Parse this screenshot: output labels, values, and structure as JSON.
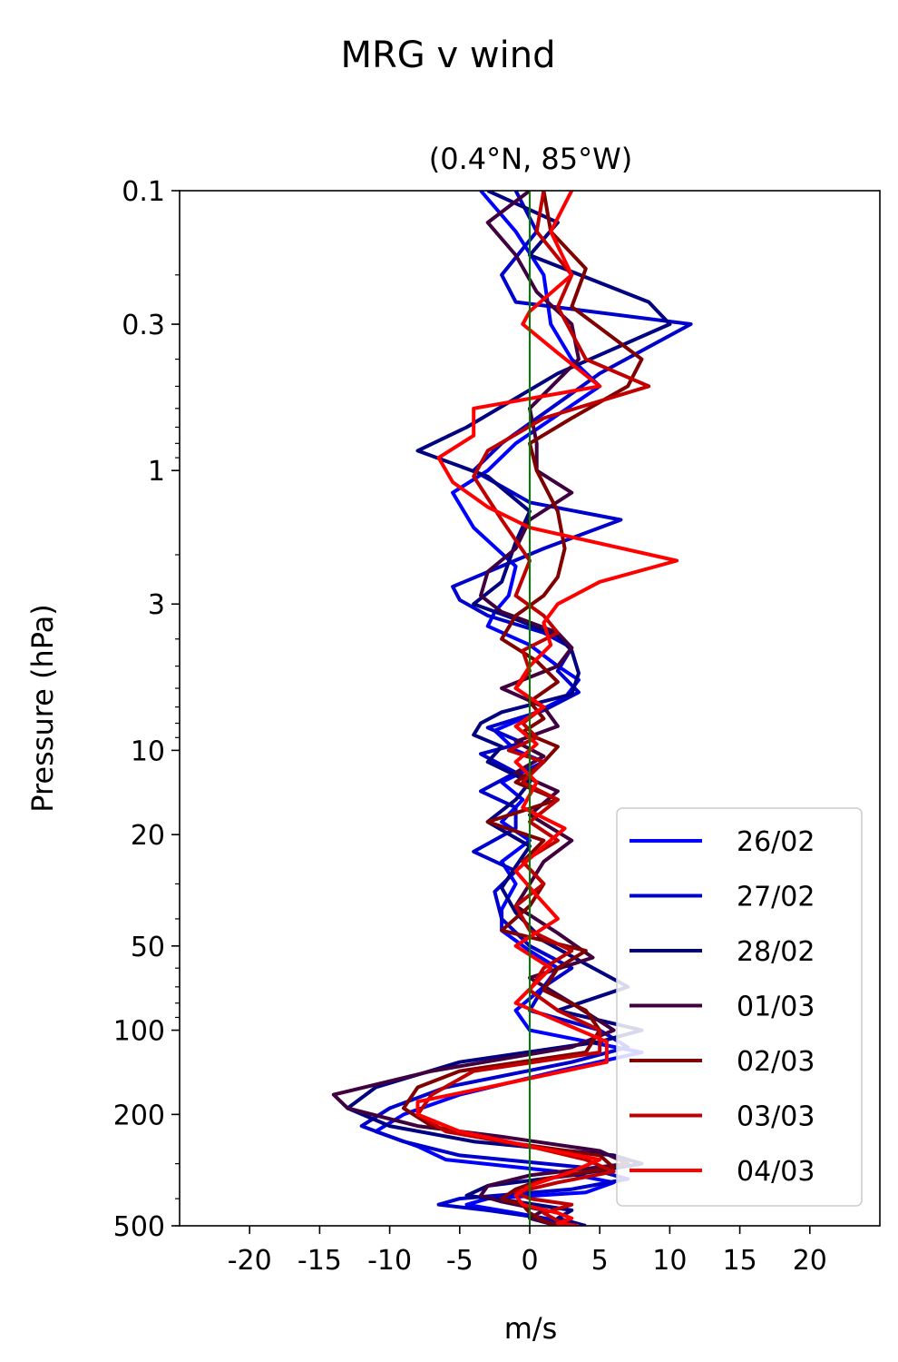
{
  "chart_data": {
    "type": "line",
    "title": "MRG v wind",
    "subtitle": "(0.4°N, 85°W)",
    "xlabel": "m/s",
    "ylabel": "Pressure (hPa)",
    "xlim": [
      -25,
      25
    ],
    "ylim": [
      500,
      0.1
    ],
    "yscale": "log",
    "xticks": [
      -20,
      -15,
      -10,
      -5,
      0,
      5,
      10,
      15,
      20
    ],
    "xtick_labels": [
      "-20",
      "-15",
      "-10",
      "-5",
      "0",
      "5",
      "10",
      "15",
      "20"
    ],
    "yticks": [
      0.1,
      0.3,
      1,
      3,
      10,
      20,
      50,
      100,
      200,
      500
    ],
    "ytick_labels": [
      "0.1",
      "0.3",
      "1",
      "3",
      "10",
      "20",
      "50",
      "100",
      "200",
      "500"
    ],
    "zero_line_color": "#008000",
    "legend_position": "lower-right",
    "series": [
      {
        "name": "26/02",
        "color": "#0000ff",
        "x": [
          -3.5,
          -1,
          1,
          1.5,
          3,
          5,
          -1,
          -3,
          -5.5,
          -4,
          -1,
          -1.5,
          -2.5,
          -3,
          0,
          2,
          3.5,
          2.5,
          0,
          -2.5,
          -1,
          1,
          -2,
          -0.5,
          -2,
          0,
          -2,
          -1,
          -2,
          -2,
          0,
          2,
          1,
          -1,
          0,
          8,
          2,
          -5,
          -9,
          -11,
          -8,
          -6,
          2,
          6,
          4,
          -3,
          -4.5,
          -1,
          2,
          4
        ],
        "y": [
          0.1,
          0.14,
          0.2,
          0.3,
          0.4,
          0.5,
          0.8,
          1.0,
          1.2,
          1.6,
          2.2,
          2.8,
          3.2,
          3.6,
          4.2,
          5.0,
          5.6,
          6.5,
          7.5,
          8.5,
          10,
          11,
          13,
          15,
          18,
          21,
          25,
          30,
          37,
          44,
          52,
          60,
          70,
          85,
          100,
          120,
          140,
          170,
          200,
          230,
          260,
          290,
          320,
          350,
          380,
          400,
          420,
          450,
          480,
          500
        ]
      },
      {
        "name": "27/02",
        "color": "#0000cc",
        "x": [
          -1,
          0.5,
          -2,
          -1,
          11.5,
          5,
          -2,
          -4,
          0,
          6.5,
          1,
          -5.5,
          -5,
          -3,
          1,
          3,
          2,
          3.5,
          1,
          -3,
          -0.5,
          -3.5,
          -1,
          -3.5,
          -1,
          -1,
          -4,
          -1,
          -2.5,
          -2,
          0,
          3,
          1,
          0,
          5,
          7,
          3,
          -6,
          -10,
          -12,
          -9,
          -5,
          4,
          7,
          3,
          -5,
          -6.5,
          -3,
          1,
          3
        ],
        "y": [
          0.1,
          0.14,
          0.2,
          0.25,
          0.3,
          0.45,
          0.8,
          1.0,
          1.3,
          1.5,
          1.9,
          2.6,
          2.9,
          3.3,
          3.8,
          4.3,
          5.2,
          6.2,
          7.2,
          8.3,
          9.4,
          10.3,
          12,
          14,
          16,
          19,
          23,
          27,
          32,
          40,
          50,
          60,
          70,
          85,
          100,
          115,
          130,
          160,
          190,
          220,
          250,
          280,
          310,
          340,
          370,
          400,
          420,
          440,
          470,
          500
        ]
      },
      {
        "name": "28/02",
        "color": "#000080",
        "x": [
          -3,
          2,
          0,
          8.5,
          10,
          2,
          -4.5,
          -8,
          -3,
          0,
          -1,
          -2,
          -4,
          -1,
          2,
          3,
          3.5,
          3,
          -2,
          -3.5,
          -4,
          -2,
          -3,
          0,
          -1,
          -3,
          0,
          -1,
          -2,
          -1,
          1,
          4,
          7,
          2,
          8,
          5,
          -5,
          -11,
          -13,
          -10,
          -4,
          6,
          8,
          3,
          -3,
          -4.5,
          -1,
          3,
          2,
          4
        ],
        "y": [
          0.1,
          0.13,
          0.17,
          0.25,
          0.3,
          0.45,
          0.7,
          0.85,
          1.05,
          1.4,
          1.8,
          2.5,
          3.0,
          3.4,
          3.9,
          4.4,
          5.3,
          6.3,
          7.3,
          8.0,
          8.8,
          9.7,
          11,
          13,
          15,
          18,
          22,
          26,
          31,
          38,
          48,
          58,
          70,
          85,
          100,
          110,
          130,
          160,
          190,
          220,
          250,
          280,
          300,
          330,
          360,
          390,
          410,
          440,
          470,
          500
        ]
      },
      {
        "name": "01/03",
        "color": "#400040",
        "x": [
          0,
          -3,
          -1,
          0.5,
          3,
          3.5,
          0,
          0.5,
          0.5,
          3,
          0,
          -1,
          -3,
          -3.5,
          -2,
          2,
          3,
          2,
          -2,
          1,
          2,
          -1,
          1,
          -1,
          2,
          0,
          3,
          1,
          0,
          -1,
          2,
          4.5,
          0,
          3,
          6,
          3,
          -7,
          -14,
          -13,
          -8,
          -2,
          5,
          7,
          0,
          -3,
          -3.5,
          -2,
          1,
          0,
          2
        ],
        "y": [
          0.1,
          0.13,
          0.17,
          0.23,
          0.3,
          0.4,
          0.6,
          0.8,
          1.0,
          1.2,
          1.5,
          1.9,
          2.3,
          2.8,
          3.2,
          3.8,
          4.3,
          5.0,
          6.0,
          7.0,
          8.2,
          9.3,
          10.5,
          12,
          14,
          17,
          21,
          25,
          30,
          36,
          45,
          55,
          65,
          80,
          100,
          115,
          140,
          170,
          190,
          220,
          240,
          270,
          300,
          330,
          360,
          390,
          410,
          440,
          470,
          500
        ]
      },
      {
        "name": "02/03",
        "color": "#800000",
        "x": [
          1,
          1.5,
          4,
          3,
          8,
          7,
          3,
          0,
          0.5,
          2,
          2.5,
          2,
          1,
          -1,
          -2,
          0.5,
          2,
          0,
          1,
          -0.5,
          2,
          1,
          -1,
          2,
          -3,
          1,
          -0.5,
          1,
          0,
          -2,
          4,
          2,
          1,
          4,
          5,
          4,
          -5,
          -8,
          -9,
          -7,
          -2,
          5,
          6,
          1,
          -1,
          -2,
          -0.5,
          0,
          1,
          2
        ],
        "y": [
          0.1,
          0.14,
          0.19,
          0.26,
          0.4,
          0.5,
          0.65,
          0.8,
          1.0,
          1.4,
          1.9,
          2.4,
          2.8,
          3.3,
          4.0,
          4.8,
          5.7,
          6.7,
          7.7,
          8.6,
          9.7,
          11,
          13,
          15,
          18,
          21,
          25,
          30,
          36,
          44,
          52,
          60,
          72,
          85,
          100,
          120,
          140,
          160,
          190,
          220,
          250,
          280,
          310,
          340,
          370,
          400,
          420,
          450,
          480,
          500
        ]
      },
      {
        "name": "03/03",
        "color": "#c00000",
        "x": [
          1,
          0.5,
          3,
          2,
          4,
          8.5,
          1,
          -3,
          -4,
          -2,
          0,
          -1,
          1,
          2,
          -0.5,
          0,
          -1,
          1,
          -0.5,
          0.5,
          -1.5,
          1,
          -0.5,
          2,
          0,
          2,
          -0.5,
          1,
          -1,
          0,
          3,
          1,
          0,
          2,
          5,
          5,
          -4,
          -7,
          -8,
          -6,
          0,
          4,
          6,
          2,
          -1,
          0,
          3,
          1,
          2,
          3
        ],
        "y": [
          0.1,
          0.14,
          0.2,
          0.26,
          0.4,
          0.5,
          0.65,
          0.85,
          1.05,
          1.5,
          2.1,
          2.8,
          3.3,
          3.8,
          4.4,
          5.2,
          6.0,
          7.0,
          8.0,
          9.0,
          10,
          11,
          13,
          15,
          18,
          21,
          25,
          30,
          36,
          44,
          52,
          60,
          72,
          85,
          100,
          120,
          140,
          170,
          200,
          230,
          260,
          290,
          320,
          350,
          380,
          400,
          420,
          450,
          480,
          500
        ]
      },
      {
        "name": "04/03",
        "color": "#ff0000",
        "x": [
          3,
          1.5,
          3,
          0,
          -0.5,
          2,
          5,
          -4,
          -4,
          -6.5,
          -5.5,
          -3,
          0,
          10.5,
          5,
          2,
          1,
          1.5,
          0,
          -1,
          1,
          -1,
          0.5,
          -1,
          0.5,
          -0.5,
          2.5,
          1,
          -1,
          0.5,
          2,
          -1,
          1.5,
          -1,
          5.5,
          5.5,
          -3,
          -8,
          -8,
          -5,
          0,
          5,
          3,
          0,
          -1,
          -0.5,
          2,
          3,
          2,
          3.5
        ],
        "y": [
          0.1,
          0.14,
          0.2,
          0.27,
          0.3,
          0.38,
          0.5,
          0.6,
          0.75,
          0.9,
          1.1,
          1.35,
          1.6,
          2.1,
          2.5,
          3.0,
          3.5,
          4.2,
          5.0,
          6.0,
          7.0,
          8.2,
          9.5,
          11,
          13,
          16,
          19,
          22,
          27,
          33,
          40,
          50,
          60,
          80,
          110,
          130,
          160,
          180,
          200,
          230,
          260,
          290,
          320,
          360,
          390,
          420,
          450,
          470,
          490,
          500
        ]
      }
    ]
  }
}
